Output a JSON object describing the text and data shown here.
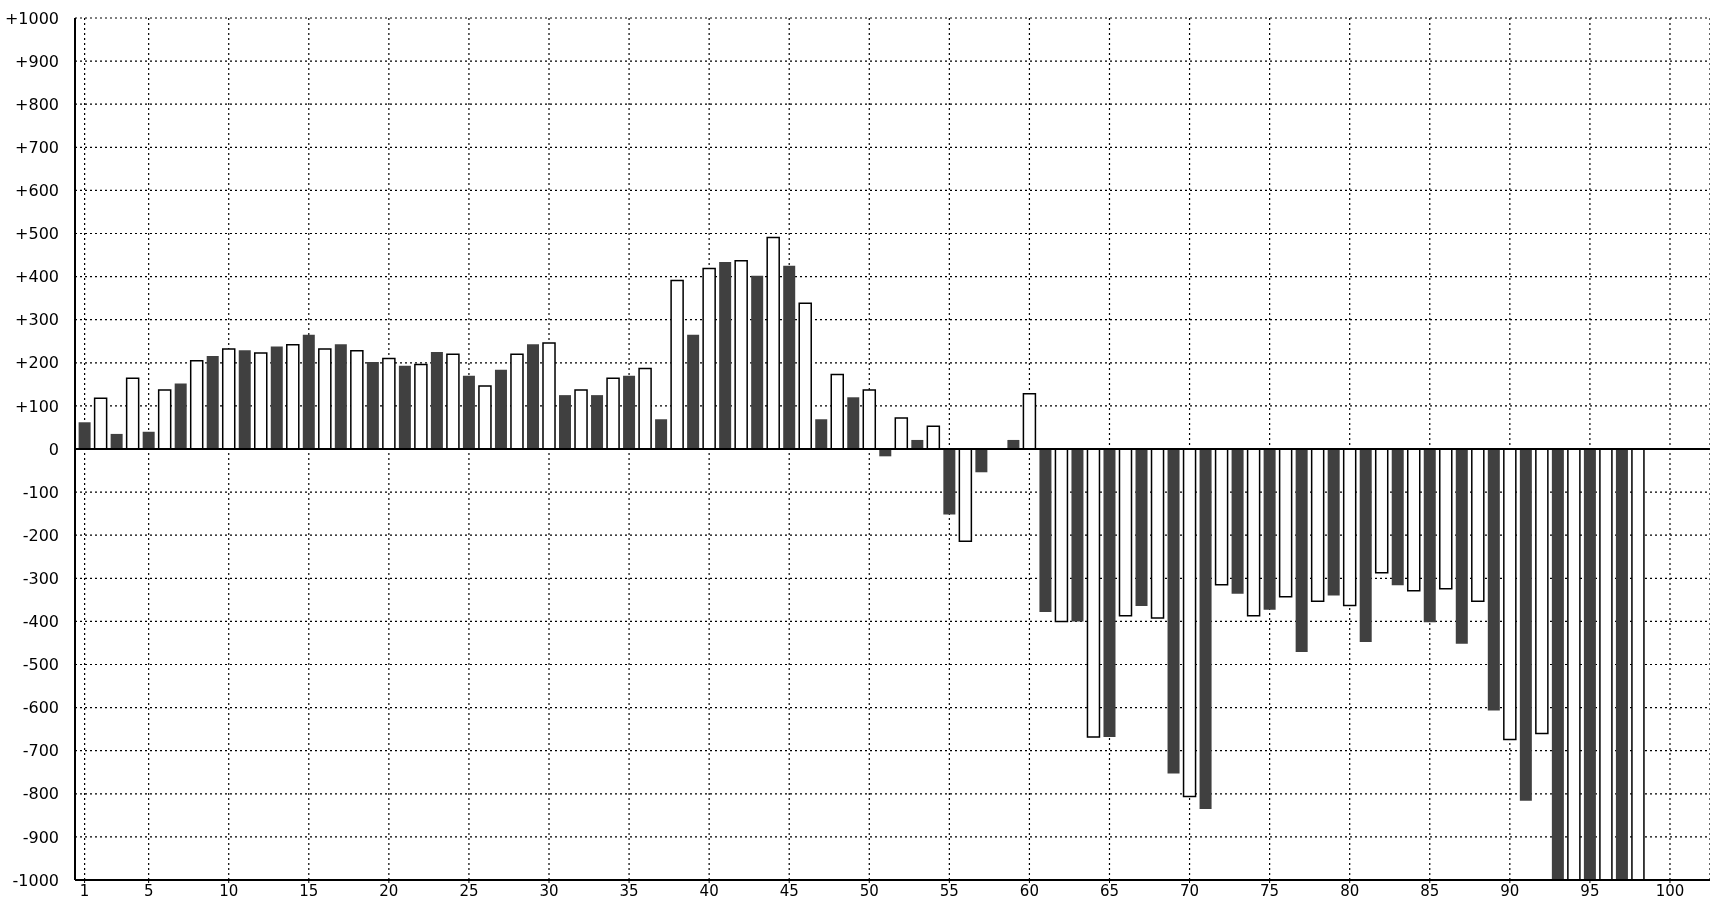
{
  "chart_data": {
    "type": "bar",
    "x": [
      1,
      2,
      3,
      4,
      5,
      6,
      7,
      8,
      9,
      10,
      11,
      12,
      13,
      14,
      15,
      16,
      17,
      18,
      19,
      20,
      21,
      22,
      23,
      24,
      25,
      26,
      27,
      28,
      29,
      30,
      31,
      32,
      33,
      34,
      35,
      36,
      37,
      38,
      39,
      40,
      41,
      42,
      43,
      44,
      45,
      46,
      47,
      48,
      49,
      50,
      51,
      52,
      53,
      54,
      55,
      56,
      57,
      58,
      59,
      60,
      61,
      62,
      63,
      64,
      65,
      66,
      67,
      68,
      69,
      70,
      71,
      72,
      73,
      74,
      75,
      76,
      77,
      78,
      79,
      80,
      81,
      82,
      83,
      84,
      85,
      86,
      87,
      88,
      89,
      90,
      91,
      92,
      93,
      94,
      95,
      96,
      97,
      98
    ],
    "values": [
      62,
      118,
      35,
      164,
      40,
      137,
      152,
      205,
      216,
      232,
      229,
      223,
      238,
      242,
      265,
      232,
      243,
      228,
      202,
      210,
      193,
      196,
      225,
      220,
      170,
      146,
      184,
      220,
      243,
      246,
      125,
      137,
      125,
      164,
      170,
      187,
      69,
      391,
      265,
      419,
      434,
      437,
      402,
      491,
      425,
      338,
      69,
      173,
      120,
      137,
      -17,
      72,
      21,
      53,
      -152,
      -214,
      -54,
      null,
      21,
      128,
      -378,
      -400,
      -400,
      -668,
      -668,
      -387,
      -364,
      -392,
      -753,
      -806,
      -835,
      -315,
      -336,
      -387,
      -373,
      -343,
      -471,
      -353,
      -340,
      -363,
      -448,
      -287,
      -316,
      -329,
      -402,
      -324,
      -452,
      -353,
      -607,
      -674,
      -816,
      -660,
      -1000,
      -1000,
      -1000,
      -1000,
      -1000,
      -1000
    ],
    "colors": [
      "#404040",
      "#ffffff",
      "#404040",
      "#ffffff",
      "#404040",
      "#ffffff",
      "#404040",
      "#ffffff",
      "#404040",
      "#ffffff",
      "#404040",
      "#ffffff",
      "#404040",
      "#ffffff",
      "#404040",
      "#ffffff",
      "#404040",
      "#ffffff",
      "#404040",
      "#ffffff",
      "#404040",
      "#ffffff",
      "#404040",
      "#ffffff",
      "#404040",
      "#ffffff",
      "#404040",
      "#ffffff",
      "#404040",
      "#ffffff",
      "#404040",
      "#ffffff",
      "#404040",
      "#ffffff",
      "#404040",
      "#ffffff",
      "#404040",
      "#ffffff",
      "#404040",
      "#ffffff",
      "#404040",
      "#ffffff",
      "#404040",
      "#ffffff",
      "#404040",
      "#ffffff",
      "#404040",
      "#ffffff",
      "#404040",
      "#ffffff",
      "#404040",
      "#ffffff",
      "#404040",
      "#ffffff",
      "#404040",
      "#ffffff",
      "#404040",
      "#ffffff",
      "#404040",
      "#ffffff",
      "#404040",
      "#ffffff",
      "#404040",
      "#ffffff",
      "#404040",
      "#ffffff",
      "#404040",
      "#ffffff",
      "#404040",
      "#ffffff",
      "#404040",
      "#ffffff",
      "#404040",
      "#ffffff",
      "#404040",
      "#ffffff",
      "#404040",
      "#ffffff",
      "#404040",
      "#ffffff",
      "#404040",
      "#ffffff",
      "#404040",
      "#ffffff",
      "#404040",
      "#ffffff",
      "#404040",
      "#ffffff",
      "#404040",
      "#ffffff",
      "#404040",
      "#ffffff",
      "#404040",
      "#ffffff",
      "#404040",
      "#ffffff",
      "#404040",
      "#ffffff"
    ],
    "xlim": [
      0.4,
      102.5
    ],
    "xticks": [
      1,
      5,
      10,
      15,
      20,
      25,
      30,
      35,
      40,
      45,
      50,
      55,
      60,
      65,
      70,
      75,
      80,
      85,
      90,
      95,
      100
    ],
    "ylim": [
      -1000,
      1000
    ],
    "yticks": [
      {
        "value": 1000,
        "label": "+1000"
      },
      {
        "value": 900,
        "label": "+900"
      },
      {
        "value": 800,
        "label": "+800"
      },
      {
        "value": 700,
        "label": "+700"
      },
      {
        "value": 600,
        "label": "+600"
      },
      {
        "value": 500,
        "label": "+500"
      },
      {
        "value": 400,
        "label": "+400"
      },
      {
        "value": 300,
        "label": "+300"
      },
      {
        "value": 200,
        "label": "+200"
      },
      {
        "value": 100,
        "label": "+100"
      },
      0,
      -100,
      -200,
      -300,
      -400,
      -500,
      -600,
      -700,
      -800,
      -900,
      -1000
    ],
    "grid": true,
    "ref_lines": [
      {
        "axis": "y",
        "value": 0,
        "color": "#000000"
      }
    ]
  }
}
